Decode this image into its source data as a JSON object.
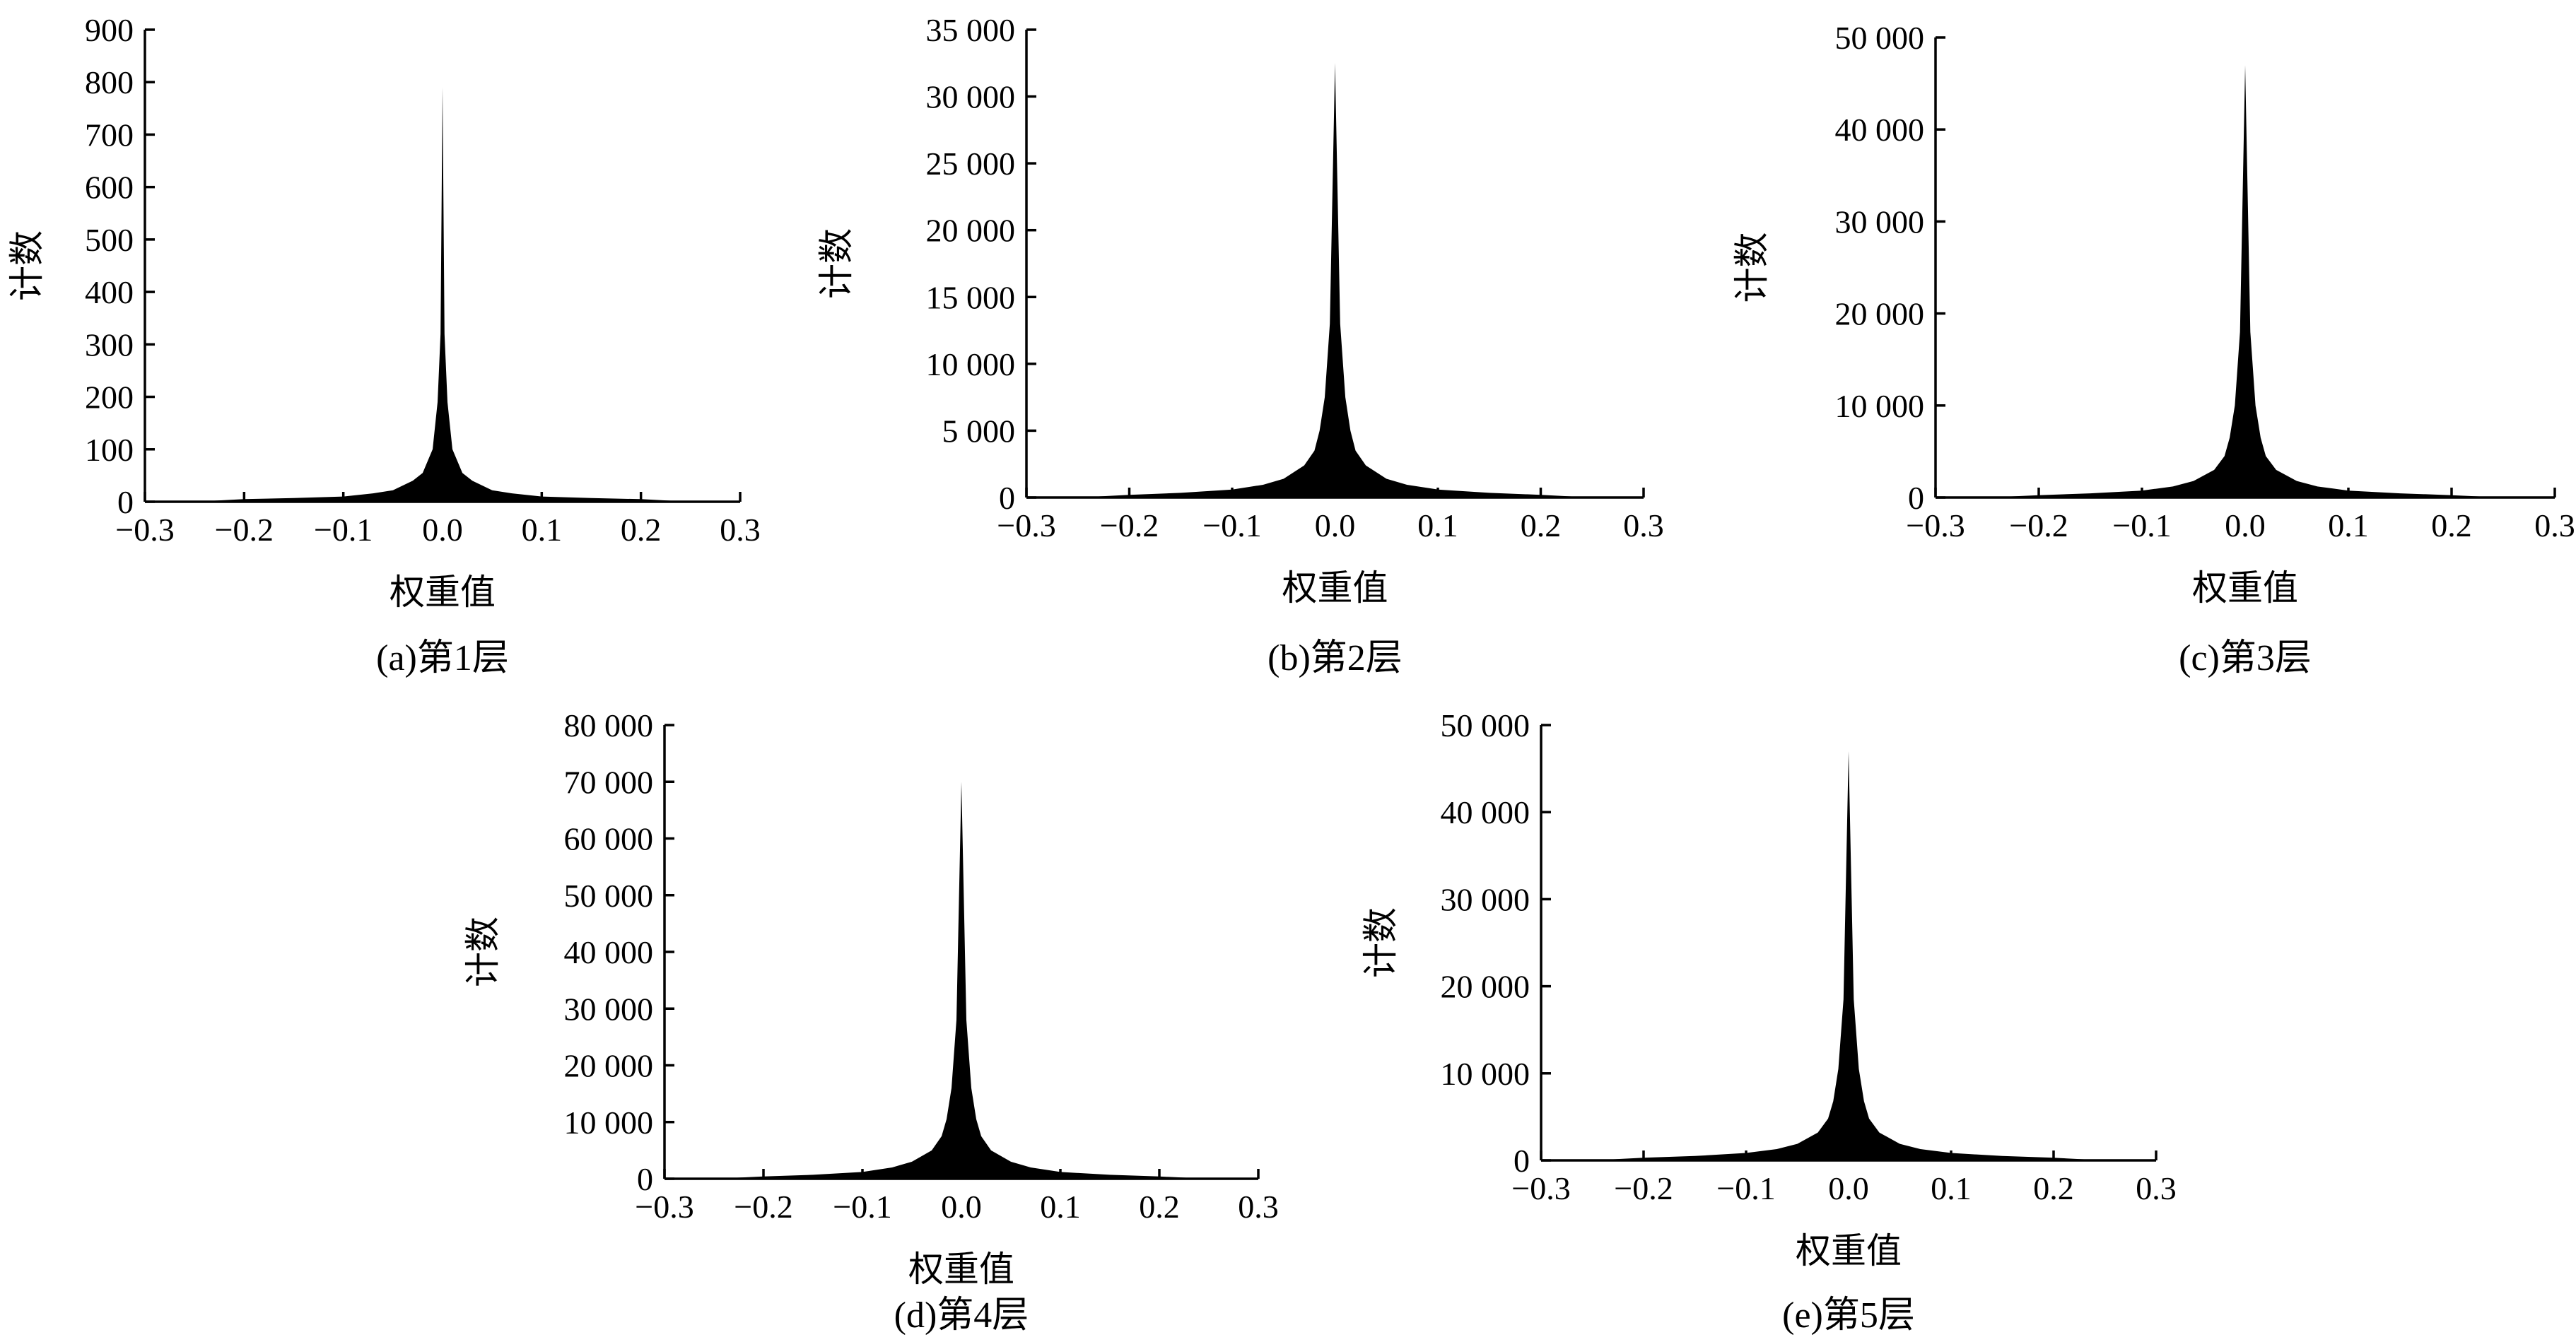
{
  "chart_data": [
    {
      "type": "area",
      "caption": "(a)第1层",
      "xlabel": "权重值",
      "ylabel": "计数",
      "xlim": [
        -0.3,
        0.3
      ],
      "ylim": [
        0,
        900
      ],
      "x_ticks": [
        "−0.3",
        "−0.2",
        "−0.1",
        "0.0",
        "0.1",
        "0.2",
        "0.3"
      ],
      "y_ticks": [
        "0",
        "100",
        "200",
        "300",
        "400",
        "500",
        "600",
        "700",
        "800",
        "900"
      ],
      "x": [
        -0.25,
        -0.2,
        -0.15,
        -0.1,
        -0.07,
        -0.05,
        -0.03,
        -0.02,
        -0.01,
        -0.005,
        -0.002,
        0.0,
        0.002,
        0.005,
        0.01,
        0.02,
        0.03,
        0.05,
        0.07,
        0.1,
        0.15,
        0.2,
        0.25
      ],
      "values": [
        0,
        5,
        7,
        10,
        16,
        22,
        40,
        55,
        100,
        190,
        320,
        790,
        320,
        190,
        100,
        55,
        40,
        22,
        16,
        10,
        7,
        5,
        0
      ]
    },
    {
      "type": "area",
      "caption": "(b)第2层",
      "xlabel": "权重值",
      "ylabel": "计数",
      "xlim": [
        -0.3,
        0.3
      ],
      "ylim": [
        0,
        35000
      ],
      "x_ticks": [
        "−0.3",
        "−0.2",
        "−0.1",
        "0.0",
        "0.1",
        "0.2",
        "0.3"
      ],
      "y_ticks": [
        "0",
        "5 000",
        "10 000",
        "15 000",
        "20 000",
        "25 000",
        "30 000",
        "35 000"
      ],
      "x": [
        -0.25,
        -0.2,
        -0.15,
        -0.1,
        -0.07,
        -0.05,
        -0.03,
        -0.02,
        -0.015,
        -0.01,
        -0.005,
        0.0,
        0.005,
        0.01,
        0.015,
        0.02,
        0.03,
        0.05,
        0.07,
        0.1,
        0.15,
        0.2,
        0.25
      ],
      "values": [
        0,
        200,
        350,
        600,
        950,
        1400,
        2400,
        3500,
        5000,
        7500,
        13000,
        32500,
        13000,
        7500,
        5000,
        3500,
        2400,
        1400,
        950,
        600,
        350,
        200,
        0
      ]
    },
    {
      "type": "area",
      "caption": "(c)第3层",
      "xlabel": "权重值",
      "ylabel": "计数",
      "xlim": [
        -0.3,
        0.3
      ],
      "ylim": [
        0,
        50000
      ],
      "x_ticks": [
        "−0.3",
        "−0.2",
        "−0.1",
        "0.0",
        "0.1",
        "0.2",
        "0.3"
      ],
      "y_ticks": [
        "0",
        "10 000",
        "20 000",
        "30 000",
        "40 000",
        "50 000"
      ],
      "x": [
        -0.25,
        -0.2,
        -0.15,
        -0.1,
        -0.07,
        -0.05,
        -0.03,
        -0.02,
        -0.015,
        -0.01,
        -0.005,
        0.0,
        0.005,
        0.01,
        0.015,
        0.02,
        0.03,
        0.05,
        0.07,
        0.1,
        0.15,
        0.2,
        0.25
      ],
      "values": [
        0,
        250,
        450,
        750,
        1200,
        1800,
        3000,
        4500,
        6500,
        10000,
        18000,
        47000,
        18000,
        10000,
        6500,
        4500,
        3000,
        1800,
        1200,
        750,
        450,
        250,
        0
      ]
    },
    {
      "type": "area",
      "caption": "(d)第4层",
      "xlabel": "权重值",
      "ylabel": "计数",
      "xlim": [
        -0.3,
        0.3
      ],
      "ylim": [
        0,
        80000
      ],
      "x_ticks": [
        "−0.3",
        "−0.2",
        "−0.1",
        "0.0",
        "0.1",
        "0.2",
        "0.3"
      ],
      "y_ticks": [
        "0",
        "10 000",
        "20 000",
        "30 000",
        "40 000",
        "50 000",
        "60 000",
        "70 000",
        "80 000"
      ],
      "x": [
        -0.25,
        -0.2,
        -0.15,
        -0.1,
        -0.07,
        -0.05,
        -0.03,
        -0.02,
        -0.015,
        -0.01,
        -0.005,
        0.0,
        0.005,
        0.01,
        0.015,
        0.02,
        0.03,
        0.05,
        0.07,
        0.1,
        0.15,
        0.2,
        0.25
      ],
      "values": [
        0,
        400,
        700,
        1200,
        2000,
        3000,
        5000,
        7500,
        10500,
        16000,
        28000,
        70000,
        28000,
        16000,
        10500,
        7500,
        5000,
        3000,
        2000,
        1200,
        700,
        400,
        0
      ]
    },
    {
      "type": "area",
      "caption": "(e)第5层",
      "xlabel": "权重值",
      "ylabel": "计数",
      "xlim": [
        -0.3,
        0.3
      ],
      "ylim": [
        0,
        50000
      ],
      "x_ticks": [
        "−0.3",
        "−0.2",
        "−0.1",
        "0.0",
        "0.1",
        "0.2",
        "0.3"
      ],
      "y_ticks": [
        "0",
        "10 000",
        "20 000",
        "30 000",
        "40 000",
        "50 000"
      ],
      "x": [
        -0.25,
        -0.2,
        -0.15,
        -0.1,
        -0.07,
        -0.05,
        -0.03,
        -0.02,
        -0.015,
        -0.01,
        -0.005,
        0.0,
        0.005,
        0.01,
        0.015,
        0.02,
        0.03,
        0.05,
        0.07,
        0.1,
        0.15,
        0.2,
        0.25
      ],
      "values": [
        0,
        300,
        500,
        850,
        1300,
        1900,
        3200,
        4800,
        6800,
        10500,
        18500,
        47000,
        18500,
        10500,
        6800,
        4800,
        3200,
        1900,
        1300,
        850,
        500,
        300,
        0
      ]
    }
  ]
}
